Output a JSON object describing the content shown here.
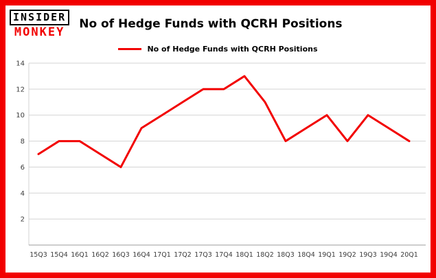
{
  "brand": {
    "line1": "INSIDER",
    "line2": "MONKEY"
  },
  "header": {
    "title": "No of Hedge Funds with QCRH Positions"
  },
  "legend": {
    "label": "No of Hedge Funds with QCRH Positions"
  },
  "colors": {
    "accent_red": "#f20000",
    "frame_border": "#f20000",
    "grid": "#d3d3d3",
    "axis": "#9b9b9b",
    "tick_text": "#3c3c3c"
  },
  "chart_data": {
    "type": "line",
    "title": "No of Hedge Funds with QCRH Positions",
    "series_name": "No of Hedge Funds with QCRH Positions",
    "categories": [
      "15Q3",
      "15Q4",
      "16Q1",
      "16Q2",
      "16Q3",
      "16Q4",
      "17Q1",
      "17Q2",
      "17Q3",
      "17Q4",
      "18Q1",
      "18Q2",
      "18Q3",
      "18Q4",
      "19Q1",
      "19Q2",
      "19Q3",
      "19Q4",
      "20Q1"
    ],
    "values": [
      7,
      8,
      8,
      7,
      6,
      9,
      10,
      11,
      12,
      12,
      13,
      11,
      8,
      9,
      10,
      8,
      10,
      9,
      8
    ],
    "xlabel": "",
    "ylabel": "",
    "ylim": [
      0,
      14
    ],
    "yticks": [
      2,
      4,
      6,
      8,
      10,
      12,
      14
    ],
    "grid": true,
    "line_color": "#f20000",
    "legend_position": "top-center"
  }
}
